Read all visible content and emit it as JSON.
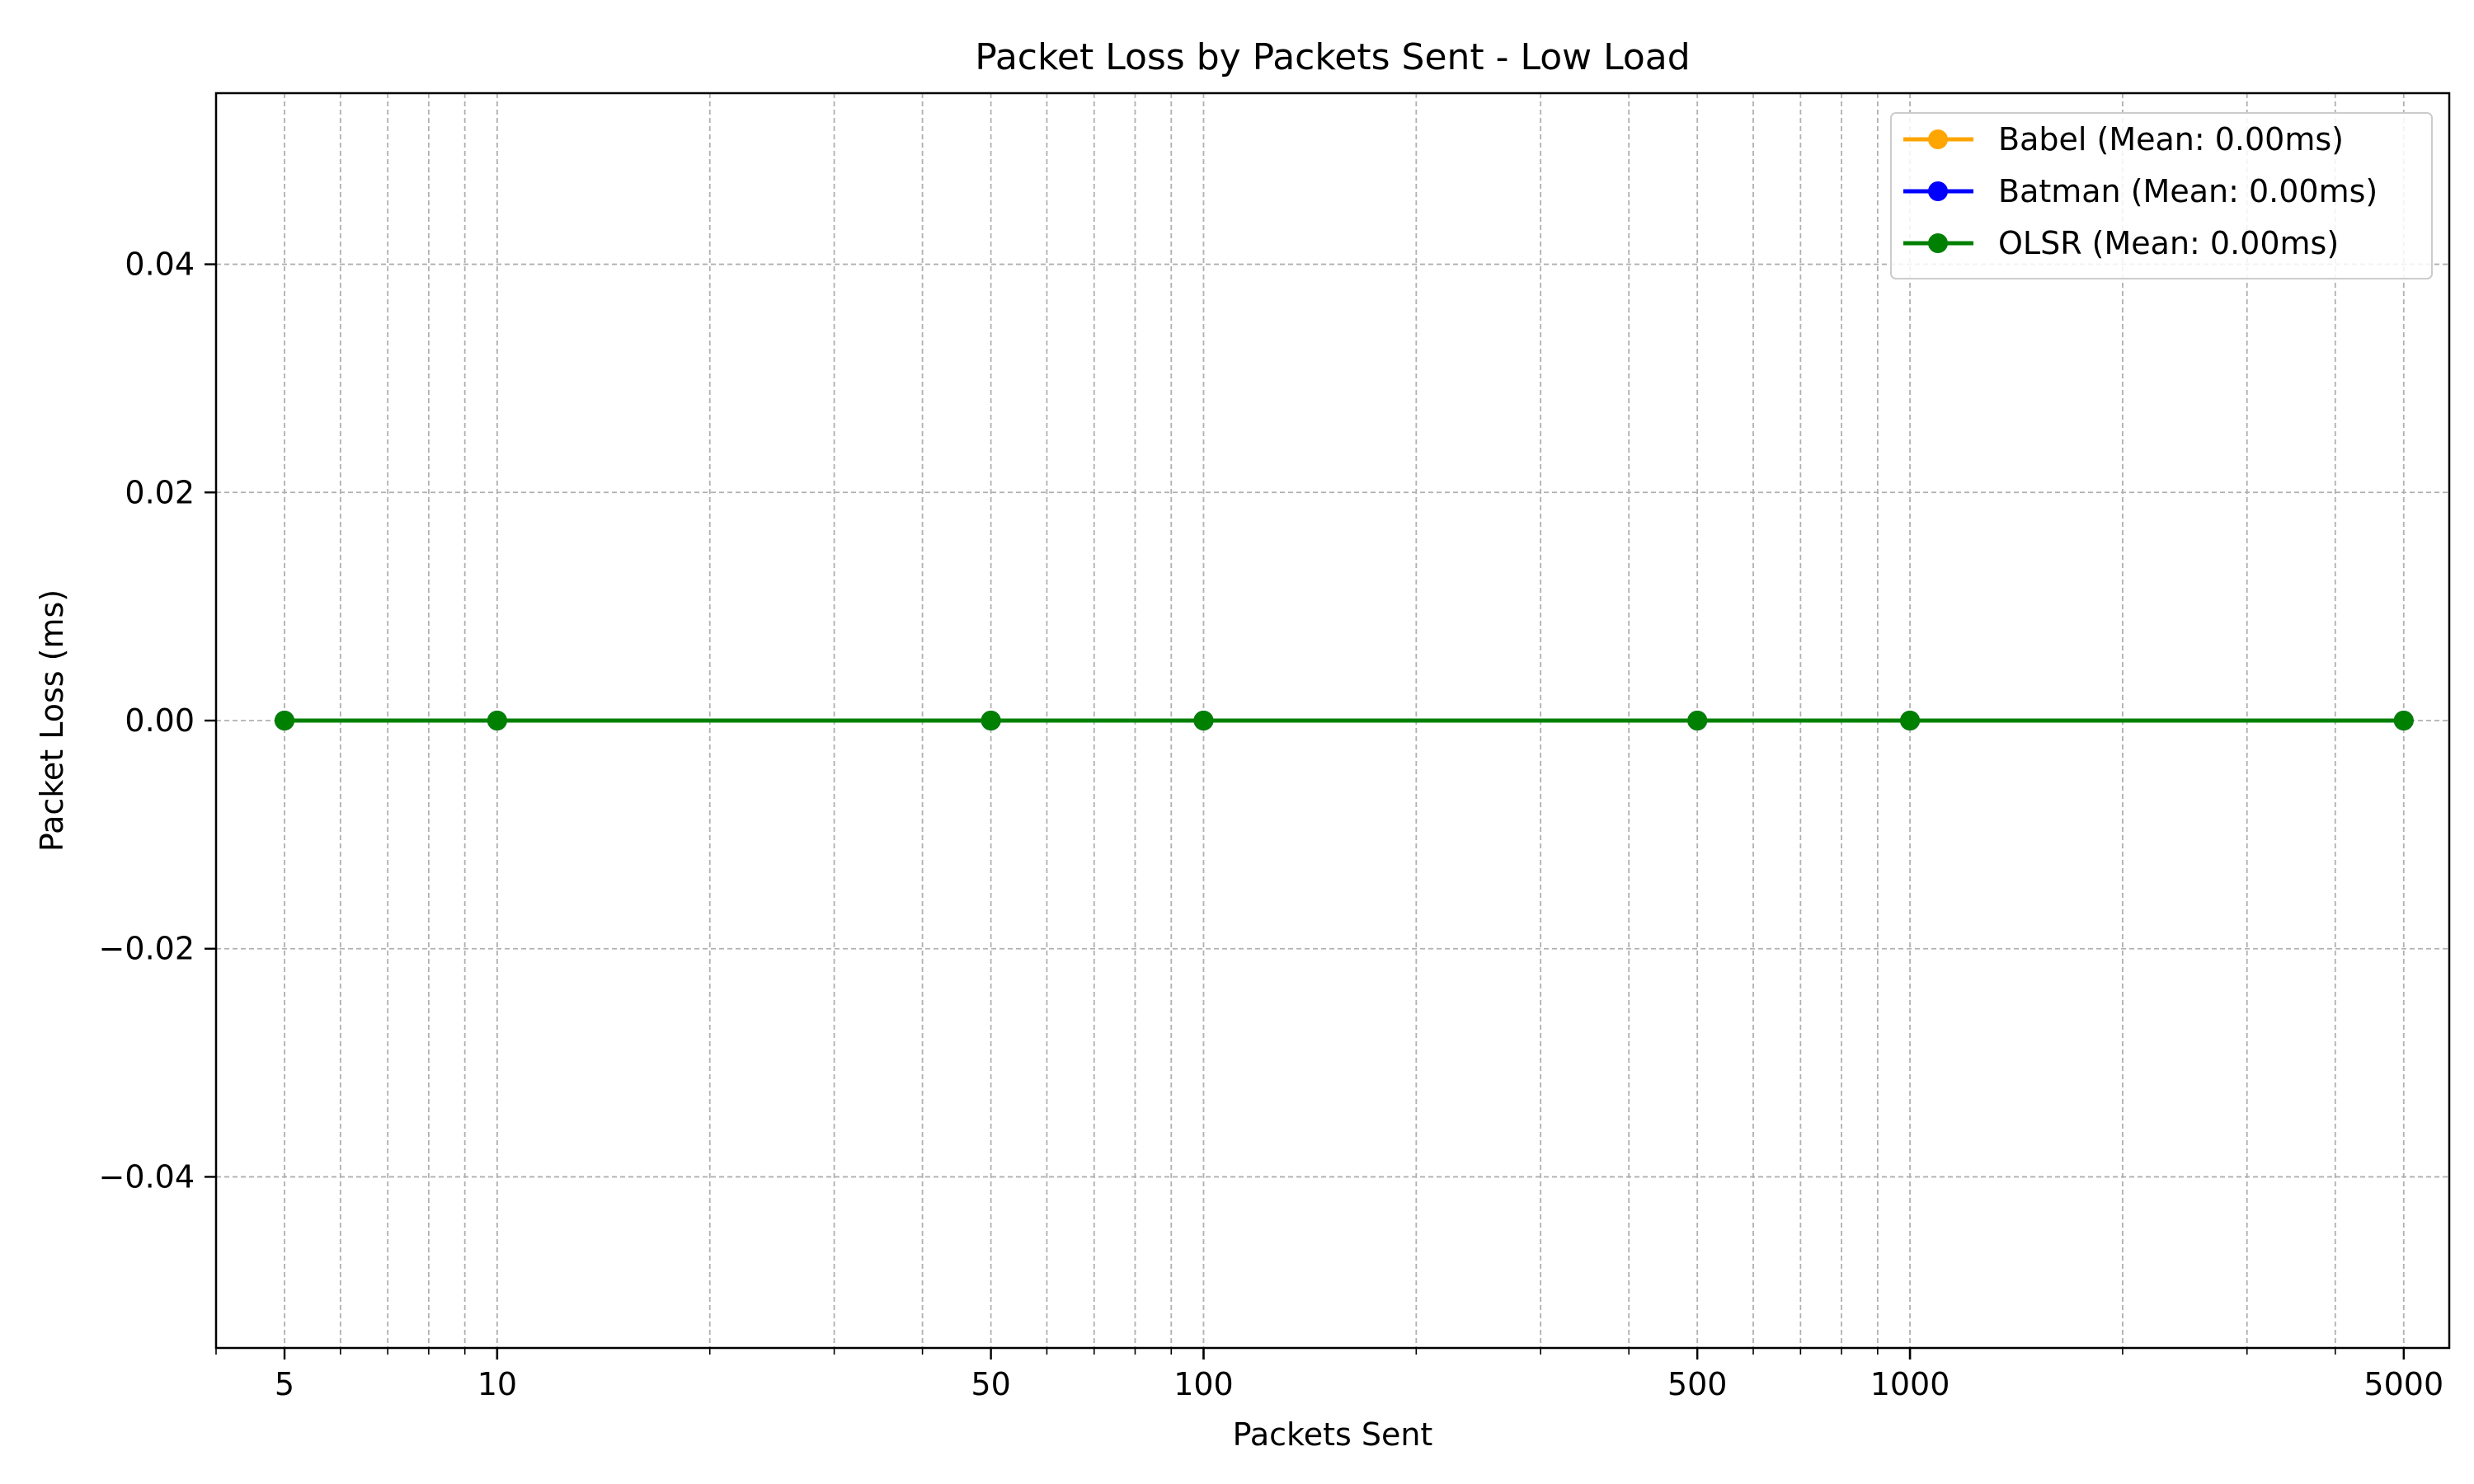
{
  "chart_data": {
    "type": "line",
    "title": "Packet Loss by Packets Sent - Low Load",
    "xlabel": "Packets Sent",
    "ylabel": "Packet Loss (ms)",
    "xscale": "log",
    "xlim": [
      4,
      5800
    ],
    "ylim": [
      -0.055,
      0.055
    ],
    "x_ticks": [
      5,
      10,
      50,
      100,
      500,
      1000,
      5000
    ],
    "x_tick_labels": [
      "5",
      "10",
      "50",
      "100",
      "500",
      "1000",
      "5000"
    ],
    "y_ticks": [
      -0.04,
      -0.02,
      0.0,
      0.02,
      0.04
    ],
    "y_tick_labels": [
      "−0.04",
      "−0.02",
      "0.00",
      "0.02",
      "0.04"
    ],
    "grid": true,
    "legend_position": "top-right",
    "x": [
      5,
      10,
      50,
      100,
      500,
      1000,
      5000
    ],
    "series": [
      {
        "name": "Babel (Mean: 0.00ms)",
        "color": "#ffa500",
        "values": [
          0,
          0,
          0,
          0,
          0,
          0,
          0
        ]
      },
      {
        "name": "Batman (Mean: 0.00ms)",
        "color": "#0000ff",
        "values": [
          0,
          0,
          0,
          0,
          0,
          0,
          0
        ]
      },
      {
        "name": "OLSR (Mean: 0.00ms)",
        "color": "#008000",
        "values": [
          0,
          0,
          0,
          0,
          0,
          0,
          0
        ]
      }
    ]
  }
}
